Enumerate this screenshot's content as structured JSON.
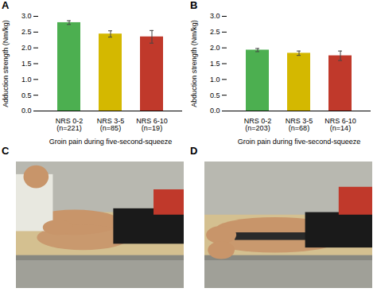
{
  "chart_data": [
    {
      "type": "bar",
      "title": "A",
      "xlabel": "Groin pain during five-second-squeeze",
      "ylabel": "Adduction strength (Nm/kg)",
      "categories": [
        "NRS 0-2\n(n=221)",
        "NRS 3-5\n(n=85)",
        "NRS 6-10\n(n=19)"
      ],
      "values": [
        2.8,
        2.44,
        2.35
      ],
      "errors": [
        0.06,
        0.1,
        0.2
      ],
      "colors": [
        "#4caf50",
        "#d4b800",
        "#c0392b"
      ],
      "ylim": [
        0.0,
        3.0
      ],
      "yticks": [
        {
          "value": 0.0,
          "label": "0.0"
        },
        {
          "value": 0.5,
          "label": "0.5"
        },
        {
          "value": 1.0,
          "label": "1.0"
        },
        {
          "value": 1.5,
          "label": "1.5"
        },
        {
          "value": 2.0,
          "label": "2.0"
        },
        {
          "value": 2.5,
          "label": "2.5"
        },
        {
          "value": 3.0,
          "label": "3.0"
        }
      ],
      "grid": false
    },
    {
      "type": "bar",
      "title": "B",
      "xlabel": "Groin pain during five-second-squeeze",
      "ylabel": "Abduction strength (Nm/kg)",
      "categories": [
        "NRS 0-2\n(n=203)",
        "NRS 3-5\n(n=68)",
        "NRS 6-10\n(n=14)"
      ],
      "values": [
        1.93,
        1.83,
        1.75
      ],
      "errors": [
        0.05,
        0.07,
        0.15
      ],
      "colors": [
        "#4caf50",
        "#d4b800",
        "#c0392b"
      ],
      "ylim": [
        0.0,
        3.0
      ],
      "yticks": [
        {
          "value": 0.0,
          "label": "0.0"
        },
        {
          "value": 0.5,
          "label": "0.5"
        },
        {
          "value": 1.0,
          "label": "1.0"
        },
        {
          "value": 1.5,
          "label": "1.5"
        },
        {
          "value": 2.0,
          "label": "2.0"
        },
        {
          "value": 2.5,
          "label": "2.5"
        },
        {
          "value": 3.0,
          "label": "3.0"
        }
      ],
      "grid": false
    },
    {
      "type": "image",
      "title": "C"
    },
    {
      "type": "image",
      "title": "D"
    }
  ]
}
